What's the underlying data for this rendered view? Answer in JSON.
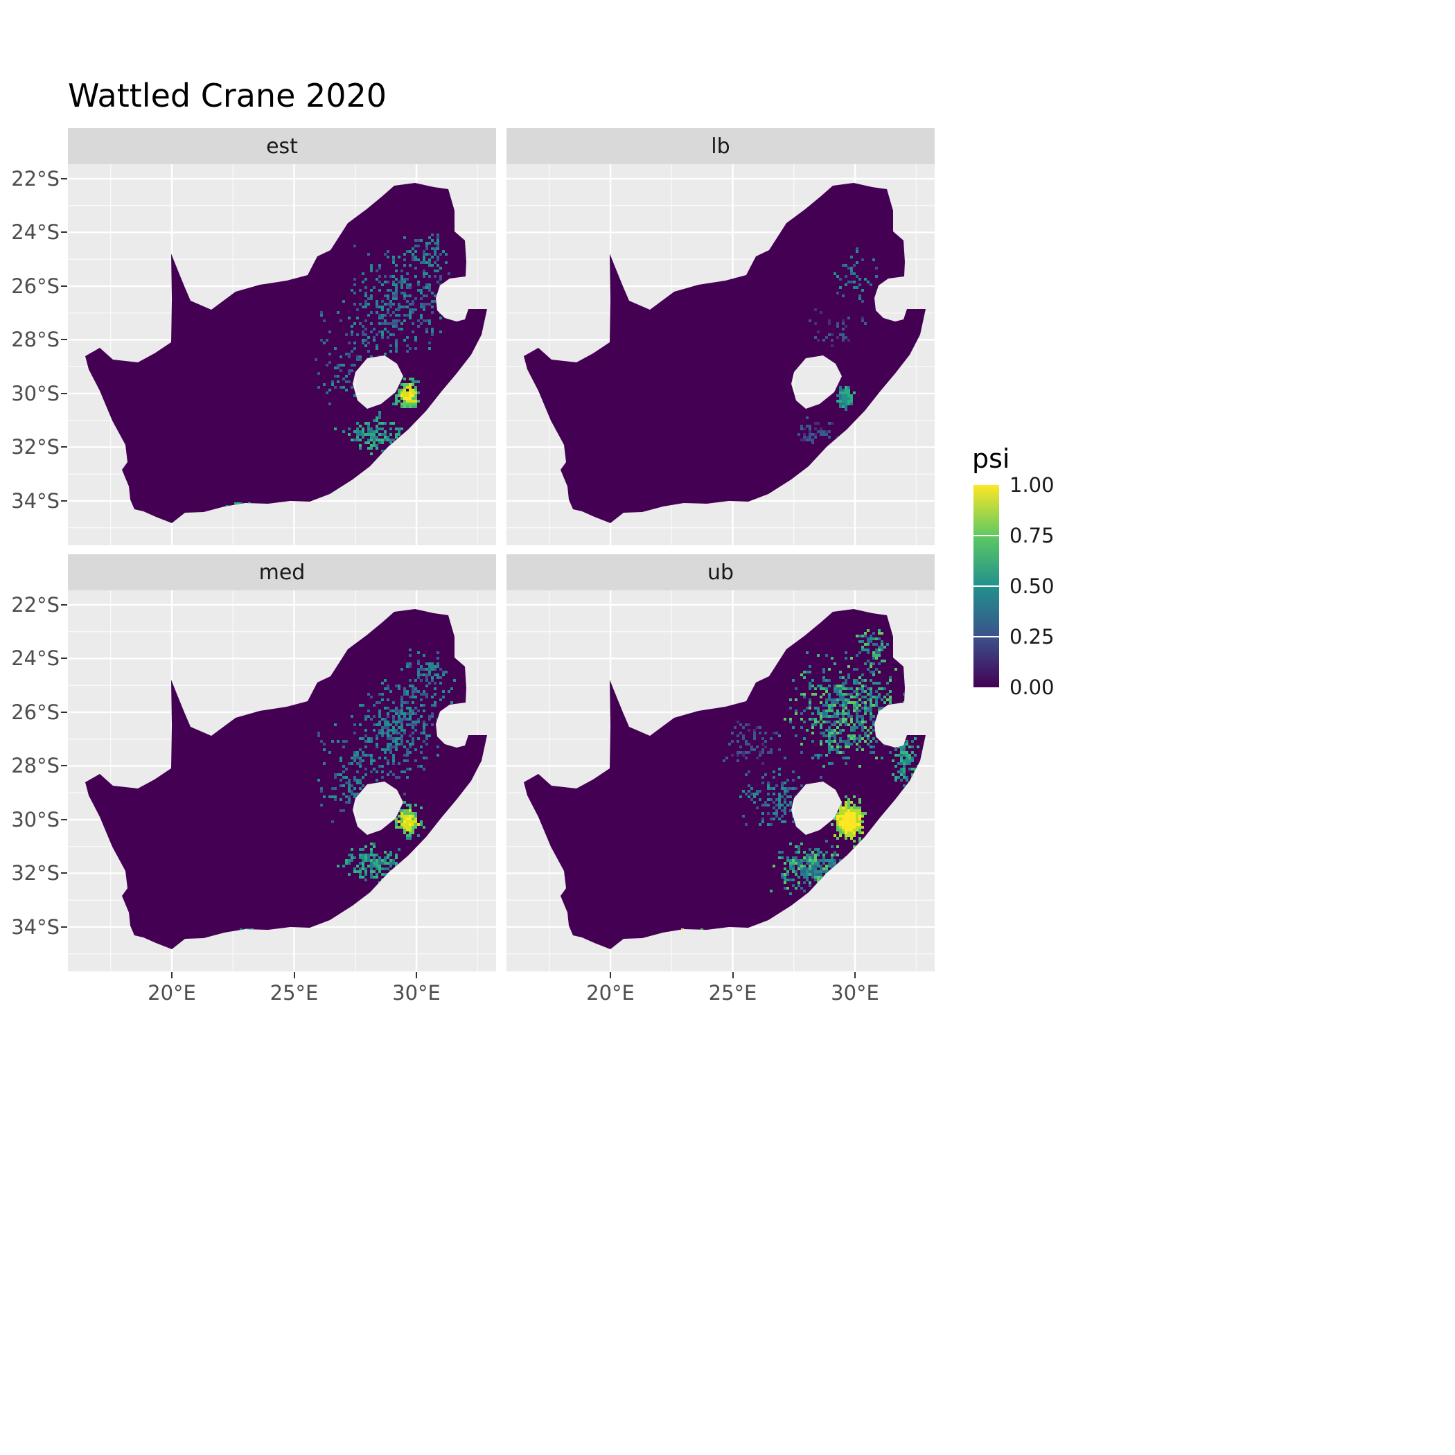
{
  "title": "Wattled Crane 2020",
  "legend": {
    "title": "psi",
    "labels": [
      {
        "text": "1.00",
        "value": 1.0
      },
      {
        "text": "0.75",
        "value": 0.75
      },
      {
        "text": "0.50",
        "value": 0.5
      },
      {
        "text": "0.25",
        "value": 0.25
      },
      {
        "text": "0.00",
        "value": 0.0
      }
    ],
    "gradient_stops": [
      {
        "value": 1.0,
        "color": "#FDE725"
      },
      {
        "value": 0.75,
        "color": "#5EC962"
      },
      {
        "value": 0.5,
        "color": "#21918C"
      },
      {
        "value": 0.25,
        "color": "#3B528B"
      },
      {
        "value": 0.0,
        "color": "#440154"
      }
    ]
  },
  "axes": {
    "x": {
      "ticks": [
        {
          "label": "20°E",
          "lon": 20
        },
        {
          "label": "25°E",
          "lon": 25
        },
        {
          "label": "30°E",
          "lon": 30
        }
      ]
    },
    "y": {
      "ticks": [
        {
          "label": "22°S",
          "lat": 22
        },
        {
          "label": "24°S",
          "lat": 24
        },
        {
          "label": "26°S",
          "lat": 26
        },
        {
          "label": "28°S",
          "lat": 28
        },
        {
          "label": "30°S",
          "lat": 30
        },
        {
          "label": "32°S",
          "lat": 32
        },
        {
          "label": "34°S",
          "lat": 34
        }
      ]
    }
  },
  "chart_data": {
    "type": "heatmap",
    "subtype": "faceted-raster-occupancy-map",
    "title": "Wattled Crane 2020",
    "region": "South Africa (Lesotho shown as hole, Eswatini as notch, both unfilled)",
    "variable": "psi (occupancy probability, 0 to 1)",
    "colorscale": "viridis",
    "lon_range": [
      15.75,
      33.26
    ],
    "lat_range_south": [
      21.46,
      35.65
    ],
    "x_breaks": [
      20,
      25,
      30
    ],
    "y_breaks_south": [
      22,
      24,
      26,
      28,
      30,
      32,
      34
    ],
    "base_value": 0.0,
    "base_color": "#440154",
    "panel_background": "#EBEBEB",
    "grid_color": "#FFFFFF",
    "hotspot_note": "High psi concentrated southeast of Lesotho (KwaZulu-Natal Drakensberg/Midlands ~29.5E 30S) with scattered moderate values over Mpumalanga/eastern Free State; lb facet sparsest, ub facet most extensive and brightest",
    "palettes": {
      "speckle_blue": [
        "#3B528B",
        "#31688E",
        "#26828E",
        "#21918C"
      ],
      "dark_blue": [
        "#472D7B",
        "#3B528B",
        "#355F8D"
      ],
      "teal_mix": [
        "#21918C",
        "#27AD81",
        "#2A788E",
        "#35B779"
      ],
      "green_teal": [
        "#21918C",
        "#35B779",
        "#2A788E",
        "#5EC962",
        "#31688E"
      ],
      "core_hot": [
        "#FDE725",
        "#D8E219",
        "#5EC962",
        "#35B779",
        "#21918C"
      ],
      "yellow_core": [
        "#FDE725",
        "#FDE725",
        "#B5DE2B",
        "#5EC962",
        "#35B779"
      ]
    },
    "facets": [
      {
        "label": "est",
        "seed": 11,
        "description": "point estimate: moderate scattered psi in northeast, bright core southeast of Lesotho",
        "clusters": [
          {
            "lon": 29.35,
            "lat": 26.3,
            "rlon": 2.55,
            "rlat": 2.3,
            "n": 230,
            "palette": "speckle_blue"
          },
          {
            "lon": 28.2,
            "lat": 27.6,
            "rlon": 3.3,
            "rlat": 1.8,
            "n": 120,
            "palette": "speckle_blue"
          },
          {
            "lon": 30.4,
            "lat": 24.6,
            "rlon": 1.15,
            "rlat": 1.05,
            "n": 55,
            "palette": "speckle_blue"
          },
          {
            "lon": 29.6,
            "lat": 30.0,
            "rlon": 0.62,
            "rlat": 0.68,
            "n": 170,
            "palette": "core_hot",
            "radial": true
          },
          {
            "lon": 28.2,
            "lat": 31.5,
            "rlon": 1.6,
            "rlat": 0.9,
            "n": 140,
            "palette": "teal_mix"
          },
          {
            "lon": 27.1,
            "lat": 29.2,
            "rlon": 1.7,
            "rlat": 1.3,
            "n": 60,
            "palette": "speckle_blue"
          },
          {
            "lon": 22.8,
            "lat": 34.1,
            "rlon": 0.85,
            "rlat": 0.15,
            "n": 10,
            "palette": "teal_mix"
          }
        ]
      },
      {
        "label": "lb",
        "seed": 22,
        "description": "lower bound: sparsest, small teal cluster southeast of Lesotho only",
        "clusters": [
          {
            "lon": 30.0,
            "lat": 25.5,
            "rlon": 1.2,
            "rlat": 1.2,
            "n": 45,
            "palette": "speckle_blue"
          },
          {
            "lon": 29.2,
            "lat": 27.5,
            "rlon": 1.7,
            "rlat": 1.0,
            "n": 35,
            "palette": "dark_blue"
          },
          {
            "lon": 29.55,
            "lat": 30.1,
            "rlon": 0.45,
            "rlat": 0.55,
            "n": 90,
            "palette": "teal_mix",
            "radial": true
          },
          {
            "lon": 28.3,
            "lat": 31.4,
            "rlon": 1.2,
            "rlat": 0.6,
            "n": 45,
            "palette": "dark_blue"
          }
        ]
      },
      {
        "label": "med",
        "seed": 33,
        "description": "median: similar to estimate with bright yellow core southeast of Lesotho",
        "clusters": [
          {
            "lon": 29.35,
            "lat": 26.2,
            "rlon": 2.6,
            "rlat": 2.2,
            "n": 280,
            "palette": "speckle_blue"
          },
          {
            "lon": 28.2,
            "lat": 27.6,
            "rlon": 3.2,
            "rlat": 1.7,
            "n": 130,
            "palette": "speckle_blue"
          },
          {
            "lon": 30.4,
            "lat": 24.5,
            "rlon": 1.3,
            "rlat": 1.1,
            "n": 70,
            "palette": "speckle_blue"
          },
          {
            "lon": 29.6,
            "lat": 30.0,
            "rlon": 0.68,
            "rlat": 0.73,
            "n": 210,
            "palette": "core_hot",
            "radial": true
          },
          {
            "lon": 28.2,
            "lat": 31.6,
            "rlon": 1.7,
            "rlat": 0.9,
            "n": 160,
            "palette": "teal_mix"
          },
          {
            "lon": 27.1,
            "lat": 29.1,
            "rlon": 1.8,
            "rlat": 1.3,
            "n": 70,
            "palette": "speckle_blue"
          },
          {
            "lon": 22.9,
            "lat": 34.1,
            "rlon": 0.9,
            "rlat": 0.15,
            "n": 12,
            "palette": "teal_mix"
          }
        ]
      },
      {
        "label": "ub",
        "seed": 44,
        "description": "upper bound: most extensive, broad green/teal over east plus large yellow core around/below Lesotho and spots on south coast",
        "clusters": [
          {
            "lon": 29.6,
            "lat": 25.9,
            "rlon": 3.1,
            "rlat": 2.6,
            "n": 620,
            "palette": "green_teal"
          },
          {
            "lon": 29.7,
            "lat": 30.0,
            "rlon": 0.85,
            "rlat": 1.0,
            "n": 330,
            "palette": "yellow_core",
            "radial": true
          },
          {
            "lon": 28.2,
            "lat": 31.7,
            "rlon": 2.0,
            "rlat": 1.1,
            "n": 340,
            "palette": "green_teal"
          },
          {
            "lon": 26.9,
            "lat": 29.2,
            "rlon": 2.0,
            "rlat": 1.4,
            "n": 150,
            "palette": "speckle_blue"
          },
          {
            "lon": 25.6,
            "lat": 27.1,
            "rlon": 1.6,
            "rlat": 1.2,
            "n": 70,
            "palette": "dark_blue"
          },
          {
            "lon": 32.0,
            "lat": 27.7,
            "rlon": 0.7,
            "rlat": 1.6,
            "n": 110,
            "palette": "teal_mix"
          },
          {
            "lon": 30.6,
            "lat": 23.5,
            "rlon": 0.9,
            "rlat": 0.9,
            "n": 60,
            "palette": "green_teal"
          },
          {
            "lon": 23.1,
            "lat": 34.2,
            "rlon": 1.1,
            "rlat": 0.2,
            "n": 30,
            "palette": "yellow_core",
            "radial": true
          }
        ]
      }
    ]
  }
}
